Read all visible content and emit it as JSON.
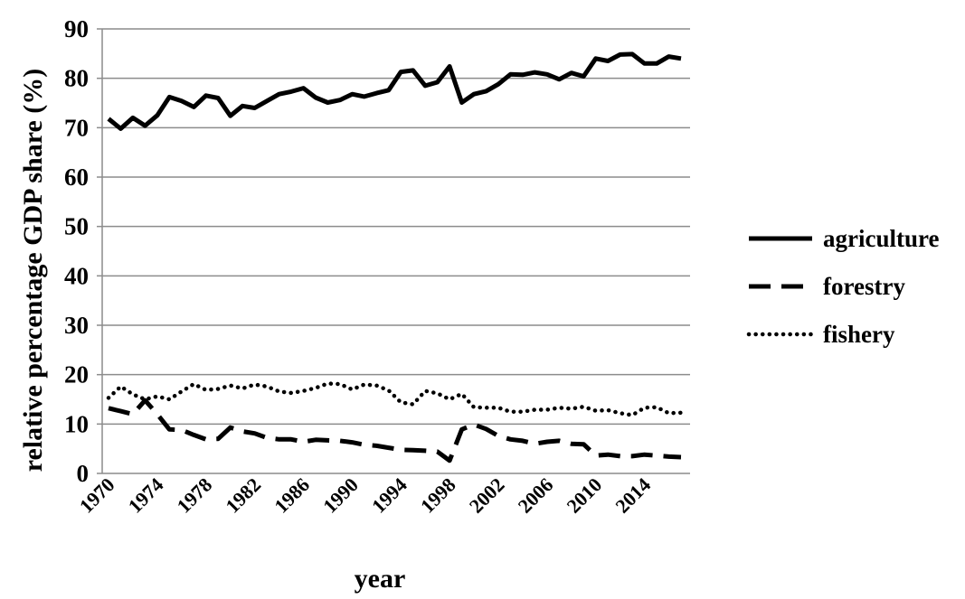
{
  "chart_data": {
    "type": "line",
    "title": "",
    "xlabel": "year",
    "ylabel": "relative percentage GDP share (%)",
    "ylim": [
      0,
      90
    ],
    "yticks": [
      0,
      10,
      20,
      30,
      40,
      50,
      60,
      70,
      80,
      90
    ],
    "xtick_labels": [
      "1970",
      "1974",
      "1978",
      "1982",
      "1986",
      "1990",
      "1994",
      "1998",
      "2002",
      "2006",
      "2010",
      "2014"
    ],
    "grid": "horizontal",
    "legend_position": "right",
    "x": [
      1970,
      1971,
      1972,
      1973,
      1974,
      1975,
      1976,
      1977,
      1978,
      1979,
      1980,
      1981,
      1982,
      1983,
      1984,
      1985,
      1986,
      1987,
      1988,
      1989,
      1990,
      1991,
      1992,
      1993,
      1994,
      1995,
      1996,
      1997,
      1998,
      1999,
      2000,
      2001,
      2002,
      2003,
      2004,
      2005,
      2006,
      2007,
      2008,
      2009,
      2010,
      2011,
      2012,
      2013,
      2014,
      2015,
      2016,
      2017
    ],
    "series": [
      {
        "name": "agriculture",
        "style": "solid",
        "values": [
          71.8,
          69.8,
          72.0,
          70.4,
          72.5,
          76.2,
          75.4,
          74.2,
          76.5,
          76.0,
          72.4,
          74.4,
          74.0,
          75.4,
          76.8,
          77.3,
          78.0,
          76.1,
          75.1,
          75.6,
          76.8,
          76.3,
          77.0,
          77.6,
          81.3,
          81.6,
          78.5,
          79.2,
          82.4,
          75.1,
          76.8,
          77.4,
          78.8,
          80.8,
          80.7,
          81.2,
          80.8,
          79.8,
          81.1,
          80.4,
          84.0,
          83.5,
          84.8,
          84.9,
          83.0,
          83.0,
          84.4,
          84.0
        ]
      },
      {
        "name": "forestry",
        "style": "dashed",
        "values": [
          13.2,
          12.6,
          12.0,
          14.8,
          12.0,
          8.9,
          8.8,
          7.8,
          6.9,
          7.0,
          9.3,
          8.5,
          8.1,
          7.2,
          6.9,
          6.9,
          6.4,
          6.8,
          6.7,
          6.6,
          6.3,
          5.8,
          5.6,
          5.2,
          4.8,
          4.7,
          4.6,
          4.4,
          2.6,
          8.9,
          9.9,
          9.0,
          7.6,
          6.9,
          6.6,
          6.0,
          6.4,
          6.6,
          6.0,
          5.9,
          3.6,
          3.8,
          3.5,
          3.5,
          3.8,
          3.6,
          3.4,
          3.3
        ]
      },
      {
        "name": "fishery",
        "style": "dotted",
        "values": [
          15.3,
          17.6,
          16.0,
          15.0,
          15.6,
          15.0,
          16.6,
          18.1,
          16.9,
          17.1,
          17.8,
          17.2,
          18.0,
          17.6,
          16.6,
          16.3,
          16.7,
          17.3,
          18.2,
          18.1,
          17.0,
          18.0,
          17.8,
          16.8,
          14.4,
          14.0,
          16.7,
          16.2,
          15.0,
          16.1,
          13.4,
          13.3,
          13.3,
          12.5,
          12.5,
          12.9,
          12.9,
          13.3,
          13.1,
          13.5,
          12.7,
          12.8,
          12.2,
          11.8,
          13.3,
          13.4,
          12.2,
          12.3
        ]
      }
    ]
  }
}
